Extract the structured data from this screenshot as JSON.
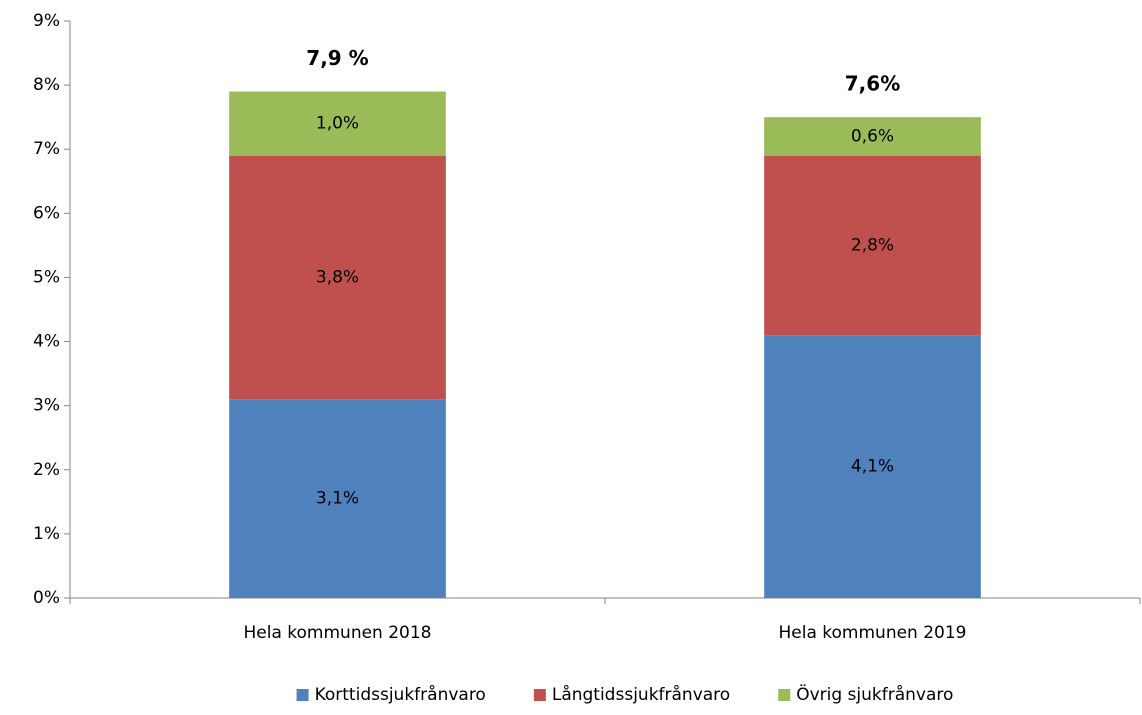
{
  "chart_data": {
    "type": "stacked_bar",
    "categories": [
      "Hela kommunen 2018",
      "Hela kommunen 2019"
    ],
    "series": [
      {
        "name": "Korttidssjukfrånvaro",
        "color": "#4f81bd",
        "values": [
          3.1,
          4.1
        ],
        "value_labels": [
          "3,1%",
          "4,1%"
        ]
      },
      {
        "name": "Långtidssjukfrånvaro",
        "color": "#c0504d",
        "values": [
          3.8,
          2.8
        ],
        "value_labels": [
          "3,8%",
          "2,8%"
        ]
      },
      {
        "name": "Övrig sjukfrånvaro",
        "color": "#9bbb59",
        "values": [
          1.0,
          0.6
        ],
        "value_labels": [
          "1,0%",
          "0,6%"
        ]
      }
    ],
    "total_labels": [
      "7,9 %",
      "7,6%"
    ],
    "ylim": [
      0,
      9
    ],
    "yticks": [
      {
        "value": 0,
        "label": "0%"
      },
      {
        "value": 1,
        "label": "1%"
      },
      {
        "value": 2,
        "label": "2%"
      },
      {
        "value": 3,
        "label": "3%"
      },
      {
        "value": 4,
        "label": "4%"
      },
      {
        "value": 5,
        "label": "5%"
      },
      {
        "value": 6,
        "label": "6%"
      },
      {
        "value": 7,
        "label": "7%"
      },
      {
        "value": 8,
        "label": "8%"
      },
      {
        "value": 9,
        "label": "9%"
      }
    ],
    "grid": false,
    "legend": "bottom"
  }
}
